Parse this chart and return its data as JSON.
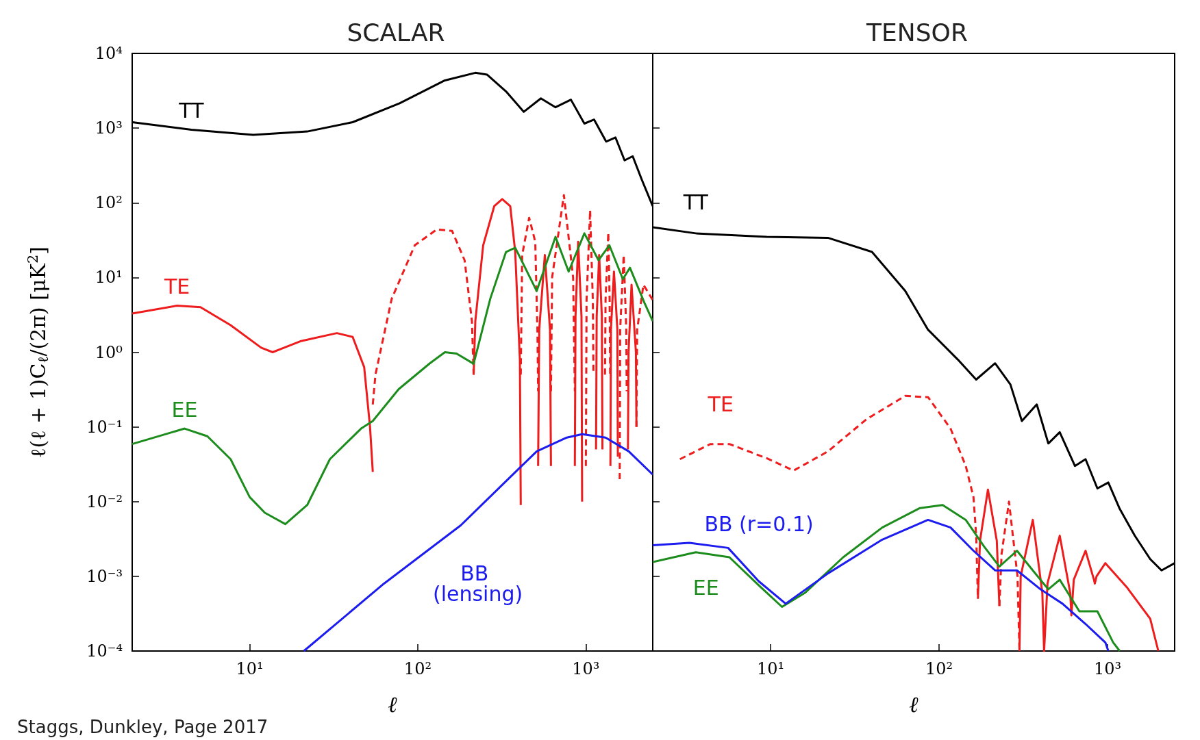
{
  "chart_data": [
    {
      "type": "line",
      "title": "SCALAR",
      "xlabel": "ℓ",
      "ylabel": "ℓ(ℓ + 1)C$_{ℓ}$/(2π) [μK$^{2}$]",
      "log": "xy",
      "xlim": [
        2,
        2500
      ],
      "ylim": [
        0.0001,
        10000
      ],
      "xticks": [
        {
          "value": 10,
          "label": "10¹"
        },
        {
          "value": 100,
          "label": "10²"
        },
        {
          "value": 1000,
          "label": "10³"
        }
      ],
      "yticks": [
        {
          "value": 0.0001,
          "label": "10⁻⁴"
        },
        {
          "value": 0.001,
          "label": "10⁻³"
        },
        {
          "value": 0.01,
          "label": "10⁻²"
        },
        {
          "value": 0.1,
          "label": "10⁻¹"
        },
        {
          "value": 1,
          "label": "10⁰"
        },
        {
          "value": 10,
          "label": "10¹"
        },
        {
          "value": 100,
          "label": "10²"
        },
        {
          "value": 1000,
          "label": "10³"
        },
        {
          "value": 10000,
          "label": "10⁴"
        }
      ],
      "annotations": [
        "Staggs, Dunkley, Page 2017"
      ],
      "series": [
        {
          "name": "TT",
          "color": "#000000",
          "line_style": "solid",
          "x": [
            2,
            4.5,
            10.5,
            22,
            41,
            78,
            145,
            220,
            258,
            335,
            427,
            540,
            660,
            815,
            980,
            1120,
            1320,
            1500,
            1700,
            1900,
            2150,
            2500
          ],
          "values": [
            1200,
            950,
            810,
            900,
            1200,
            2150,
            4350,
            5500,
            5200,
            3100,
            1650,
            2500,
            1900,
            2400,
            1150,
            1300,
            660,
            750,
            370,
            420,
            205,
            90
          ]
        },
        {
          "name": "TE",
          "color": "#ee1c1c",
          "line_style": "solid",
          "x": [
            2,
            3.7,
            5.1,
            7.7,
            11.7,
            13.7,
            20,
            33,
            41,
            48,
            52,
            54,
            100,
            215,
            220,
            245,
            285,
            318,
            355,
            380,
            405,
            410,
            460,
            520,
            528,
            570,
            612,
            620,
            740,
            860,
            868,
            900,
            942,
            950,
            1050,
            1150,
            1160,
            1200,
            1245,
            1255,
            1330,
            1400,
            1410,
            1470,
            1540,
            1550,
            1650,
            1780,
            1795,
            1870,
            1985,
            2000
          ],
          "values": [
            3.3,
            4.2,
            4.0,
            2.3,
            1.15,
            1.0,
            1.4,
            1.8,
            1.6,
            0.63,
            0.1,
            0.025,
            null,
            0.5,
            2.6,
            27,
            90,
            112,
            90,
            22,
            0.8,
            0.009,
            null,
            0.03,
            2,
            20,
            2,
            0.03,
            null,
            0.03,
            3,
            30,
            3,
            0.01,
            null,
            0.05,
            3,
            20,
            3,
            0.05,
            null,
            0.03,
            2,
            12,
            2,
            0.04,
            null,
            0.05,
            1,
            8,
            1,
            0.1
          ]
        },
        {
          "color": "#ee1c1c",
          "line_style": "dashed",
          "x": [
            54,
            56,
            70,
            96,
            130,
            160,
            190,
            210,
            215,
            300,
            410,
            418,
            460,
            500,
            515,
            520,
            570,
            620,
            630,
            740,
            840,
            860,
            900,
            1000,
            1010,
            1060,
            1100,
            1110,
            1190,
            1300,
            1310,
            1360,
            1385,
            1395,
            1470,
            1590,
            1600,
            1680,
            1740,
            1750,
            1850,
            2000,
            2020,
            2200,
            2500
          ],
          "values": [
            0.2,
            0.5,
            5.2,
            27,
            44,
            42,
            17,
            2.6,
            0.5,
            null,
            0.5,
            20,
            63,
            30,
            2,
            0.3,
            null,
            0.3,
            10,
            127,
            10,
            0.3,
            null,
            0.03,
            5,
            80,
            5,
            0.5,
            null,
            0.5,
            5,
            40,
            5,
            0.5,
            null,
            0.02,
            2,
            20,
            2,
            0.3,
            null,
            0.1,
            2,
            8,
            5
          ]
        },
        {
          "name": "EE",
          "color": "#1c8c1c",
          "line_style": "solid",
          "x": [
            2,
            4.1,
            5.6,
            7.7,
            10,
            12.3,
            16.3,
            22,
            30,
            46,
            54,
            77,
            118,
            145,
            170,
            215,
            270,
            335,
            380,
            510,
            660,
            790,
            980,
            1190,
            1380,
            1660,
            1830,
            2220,
            2500
          ],
          "values": [
            0.059,
            0.095,
            0.075,
            0.037,
            0.0115,
            0.0071,
            0.005,
            0.009,
            0.037,
            0.095,
            0.12,
            0.32,
            0.71,
            1.0,
            0.96,
            0.7,
            5.2,
            22,
            25,
            6.6,
            35,
            12,
            39,
            17,
            27,
            9.5,
            13.5,
            4.7,
            2.6
          ]
        },
        {
          "name": "BB (lensing)",
          "color": "#1c1cee",
          "line_style": "solid",
          "x": [
            21,
            63,
            180,
            415,
            510,
            770,
            950,
            1310,
            1800,
            2500
          ],
          "values": [
            0.0001,
            0.0008,
            0.0048,
            0.03,
            0.047,
            0.072,
            0.08,
            0.072,
            0.047,
            0.023
          ]
        }
      ]
    },
    {
      "type": "line",
      "title": "TENSOR",
      "xlabel": "ℓ",
      "log": "xy",
      "tick_labels": "x",
      "xlim": [
        2,
        2500
      ],
      "ylim": [
        0.0001,
        10000
      ],
      "xticks": [
        {
          "value": 10,
          "label": "10¹"
        },
        {
          "value": 100,
          "label": "10²"
        },
        {
          "value": 1000,
          "label": "10³"
        }
      ],
      "yticks": [
        {
          "value": 0.0001,
          "label": null
        },
        {
          "value": 0.001,
          "label": null
        },
        {
          "value": 0.01,
          "label": null
        },
        {
          "value": 0.1,
          "label": null
        },
        {
          "value": 1,
          "label": null
        },
        {
          "value": 10,
          "label": null
        },
        {
          "value": 100,
          "label": null
        },
        {
          "value": 1000,
          "label": null
        },
        {
          "value": 10000,
          "label": null
        }
      ],
      "series": [
        {
          "name": "TT",
          "color": "#000000",
          "line_style": "solid",
          "x": [
            2,
            3.6,
            9.5,
            21.9,
            40,
            63,
            86,
            129,
            166,
            215,
            265,
            310,
            380,
            445,
            520,
            640,
            740,
            870,
            1010,
            1180,
            1450,
            1790,
            2090,
            2500
          ],
          "values": [
            47,
            39,
            35,
            34,
            22,
            6.6,
            2.0,
            0.8,
            0.43,
            0.71,
            0.37,
            0.12,
            0.2,
            0.06,
            0.085,
            0.03,
            0.037,
            0.015,
            0.018,
            0.008,
            0.0035,
            0.0017,
            0.0012,
            0.0015
          ]
        },
        {
          "name": "TE",
          "color": "#ee1c1c",
          "line_style": "dashed",
          "x": [
            2.9,
            4.4,
            5.7,
            9.5,
            13.7,
            21.9,
            37,
            63,
            86,
            117,
            144,
            160,
            166,
            170,
            200,
            228,
            235,
            260,
            292,
            300
          ],
          "values": [
            0.037,
            0.059,
            0.059,
            0.038,
            0.026,
            0.047,
            0.126,
            0.26,
            0.25,
            0.095,
            0.03,
            0.0115,
            0.0036,
            0.0005,
            null,
            0.0004,
            0.002,
            0.01,
            0.001,
            0.0001
          ]
        },
        {
          "color": "#ee1c1c",
          "line_style": "solid",
          "x": [
            170,
            175,
            195,
            220,
            228,
            260,
            300,
            305,
            360,
            410,
            420,
            440,
            520,
            600,
            610,
            630,
            740,
            830,
            840,
            860,
            970,
            1310,
            1790,
            2000
          ],
          "values": [
            0.0005,
            0.003,
            0.0145,
            0.003,
            0.0004,
            null,
            0.0001,
            0.001,
            0.0057,
            0.0006,
            0.0001,
            0.0008,
            0.0035,
            0.0006,
            0.0003,
            0.0009,
            0.0022,
            0.0009,
            0.0008,
            0.001,
            0.0015,
            0.0007,
            0.00027,
            0.0001
          ]
        },
        {
          "name": "EE",
          "color": "#1c8c1c",
          "line_style": "solid",
          "x": [
            2,
            3.6,
            5.7,
            8.5,
            11.7,
            16,
            27,
            46,
            77,
            105,
            144,
            185,
            228,
            290,
            360,
            445,
            520,
            680,
            870,
            1080,
            1180
          ],
          "values": [
            0.00155,
            0.0021,
            0.0018,
            0.00076,
            0.00039,
            0.0006,
            0.0018,
            0.0045,
            0.0082,
            0.009,
            0.0057,
            0.0025,
            0.00135,
            0.0022,
            0.0012,
            0.00067,
            0.0009,
            0.00034,
            0.00034,
            0.00013,
            0.0001
          ]
        },
        {
          "name": "BB (r=0.1)",
          "color": "#1c1cee",
          "line_style": "solid",
          "x": [
            2,
            3.3,
            5.6,
            8.5,
            12.3,
            22,
            46,
            86,
            117,
            160,
            215,
            290,
            400,
            540,
            740,
            970,
            1010
          ],
          "values": [
            0.0026,
            0.0028,
            0.0024,
            0.00086,
            0.00043,
            0.0011,
            0.0031,
            0.0057,
            0.0045,
            0.0022,
            0.0012,
            0.0012,
            0.00067,
            0.00043,
            0.00023,
            0.00013,
            0.0001
          ]
        }
      ]
    }
  ]
}
